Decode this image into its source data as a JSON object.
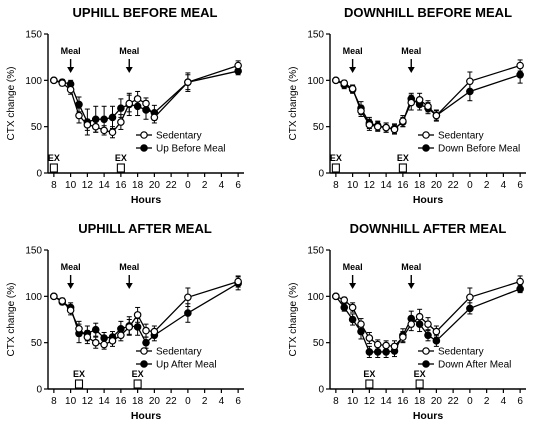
{
  "chart_data": [
    {
      "type": "line",
      "title": "UPHILL BEFORE MEAL",
      "xlabel": "Hours",
      "ylabel": "CTX change (%)",
      "ylim": [
        0,
        150
      ],
      "x_ticks": [
        "8",
        "10",
        "12",
        "14",
        "16",
        "18",
        "20",
        "22",
        "0",
        "2",
        "4",
        "6"
      ],
      "y_ticks": [
        "0",
        "50",
        "100",
        "150"
      ],
      "x": [
        "8",
        "9",
        "10",
        "11",
        "12",
        "13",
        "14",
        "15",
        "16",
        "17",
        "18",
        "19",
        "20",
        "24",
        "30"
      ],
      "meal_times": [
        "10",
        "17"
      ],
      "meal_label": "Meal",
      "exercise_times": [
        "8",
        "16"
      ],
      "exercise_label": "EX",
      "legend_position": "lower-right",
      "series": [
        {
          "name": "Sedentary",
          "marker": "open",
          "values": [
            100,
            97,
            90,
            62,
            52,
            50,
            46,
            44,
            55,
            75,
            80,
            75,
            60,
            98,
            116
          ],
          "errors": [
            2,
            3,
            5,
            8,
            6,
            6,
            5,
            6,
            8,
            9,
            8,
            6,
            6,
            10,
            5
          ]
        },
        {
          "name": "Up Before Meal",
          "marker": "filled",
          "values": [
            100,
            98,
            96,
            74,
            55,
            58,
            58,
            60,
            70,
            74,
            72,
            68,
            65,
            98,
            110
          ],
          "errors": [
            2,
            3,
            4,
            8,
            14,
            14,
            14,
            12,
            10,
            12,
            10,
            10,
            8,
            8,
            4
          ]
        }
      ]
    },
    {
      "type": "line",
      "title": "DOWNHILL BEFORE MEAL",
      "xlabel": "Hours",
      "ylabel": "CTX change (%)",
      "ylim": [
        0,
        150
      ],
      "x_ticks": [
        "8",
        "10",
        "12",
        "14",
        "16",
        "18",
        "20",
        "22",
        "0",
        "2",
        "4",
        "6"
      ],
      "y_ticks": [
        "0",
        "50",
        "100",
        "150"
      ],
      "x": [
        "8",
        "9",
        "10",
        "11",
        "12",
        "13",
        "14",
        "15",
        "16",
        "17",
        "18",
        "19",
        "20",
        "24",
        "30"
      ],
      "meal_times": [
        "10",
        "17"
      ],
      "meal_label": "Meal",
      "exercise_times": [
        "8",
        "16"
      ],
      "exercise_label": "EX",
      "legend_position": "lower-right",
      "series": [
        {
          "name": "Sedentary",
          "marker": "open",
          "values": [
            100,
            97,
            91,
            67,
            52,
            50,
            49,
            47,
            56,
            76,
            79,
            72,
            62,
            99,
            116
          ],
          "errors": [
            2,
            3,
            4,
            6,
            6,
            5,
            5,
            5,
            6,
            8,
            7,
            6,
            6,
            10,
            6
          ]
        },
        {
          "name": "Down Before Meal",
          "marker": "filled",
          "values": [
            100,
            95,
            90,
            70,
            54,
            51,
            49,
            48,
            55,
            80,
            74,
            70,
            62,
            88,
            106
          ],
          "errors": [
            2,
            4,
            4,
            7,
            6,
            5,
            5,
            5,
            5,
            6,
            6,
            6,
            5,
            10,
            9
          ]
        }
      ]
    },
    {
      "type": "line",
      "title": "UPHILL AFTER MEAL",
      "xlabel": "Hours",
      "ylabel": "CTX change (%)",
      "ylim": [
        0,
        150
      ],
      "x_ticks": [
        "8",
        "10",
        "12",
        "14",
        "16",
        "18",
        "20",
        "22",
        "0",
        "2",
        "4",
        "6"
      ],
      "y_ticks": [
        "0",
        "50",
        "100",
        "150"
      ],
      "x": [
        "8",
        "9",
        "10",
        "11",
        "12",
        "13",
        "14",
        "15",
        "16",
        "17",
        "18",
        "19",
        "20",
        "24",
        "30"
      ],
      "meal_times": [
        "10",
        "17"
      ],
      "meal_label": "Meal",
      "exercise_times": [
        "11",
        "18"
      ],
      "exercise_label": "EX",
      "legend_position": "lower-right",
      "series": [
        {
          "name": "Sedentary",
          "marker": "open",
          "values": [
            100,
            95,
            85,
            65,
            56,
            50,
            48,
            52,
            58,
            67,
            80,
            63,
            62,
            99,
            116
          ],
          "errors": [
            2,
            3,
            5,
            8,
            7,
            6,
            5,
            6,
            6,
            8,
            8,
            7,
            6,
            10,
            6
          ]
        },
        {
          "name": "Up After Meal",
          "marker": "filled",
          "values": [
            100,
            94,
            88,
            60,
            60,
            64,
            55,
            56,
            65,
            68,
            67,
            50,
            58,
            82,
            114
          ],
          "errors": [
            2,
            3,
            5,
            10,
            8,
            7,
            6,
            6,
            8,
            10,
            9,
            6,
            6,
            10,
            7
          ]
        }
      ]
    },
    {
      "type": "line",
      "title": "DOWNHILL AFTER MEAL",
      "xlabel": "Hours",
      "ylabel": "CTX change (%)",
      "ylim": [
        0,
        150
      ],
      "x_ticks": [
        "8",
        "10",
        "12",
        "14",
        "16",
        "18",
        "20",
        "22",
        "0",
        "2",
        "4",
        "6"
      ],
      "y_ticks": [
        "0",
        "50",
        "100",
        "150"
      ],
      "x": [
        "8",
        "9",
        "10",
        "11",
        "12",
        "13",
        "14",
        "15",
        "16",
        "17",
        "18",
        "19",
        "20",
        "24",
        "30"
      ],
      "meal_times": [
        "10",
        "17"
      ],
      "meal_label": "Meal",
      "exercise_times": [
        "12",
        "18"
      ],
      "exercise_label": "EX",
      "legend_position": "lower-right",
      "series": [
        {
          "name": "Sedentary",
          "marker": "open",
          "values": [
            100,
            96,
            88,
            70,
            55,
            48,
            47,
            46,
            56,
            70,
            78,
            70,
            62,
            99,
            116
          ],
          "errors": [
            2,
            3,
            5,
            6,
            6,
            5,
            5,
            6,
            6,
            7,
            8,
            7,
            6,
            10,
            6
          ]
        },
        {
          "name": "Down After Meal",
          "marker": "filled",
          "values": [
            100,
            88,
            75,
            62,
            40,
            40,
            40,
            41,
            58,
            76,
            70,
            58,
            52,
            87,
            108
          ],
          "errors": [
            2,
            4,
            6,
            8,
            6,
            6,
            6,
            6,
            7,
            8,
            8,
            6,
            6,
            6,
            4
          ]
        }
      ]
    }
  ]
}
